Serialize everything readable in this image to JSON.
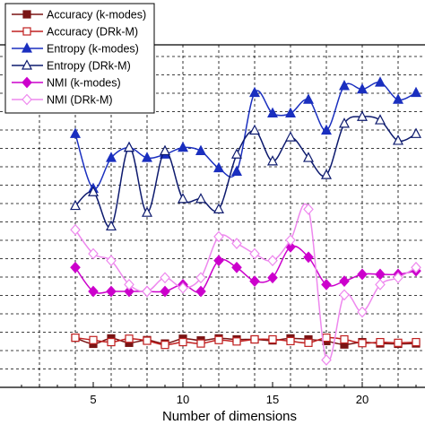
{
  "chart_data": {
    "type": "line",
    "title": "",
    "xlabel": "Number of dimensions",
    "ylabel": "",
    "xlim": [
      0,
      24
    ],
    "ylim": [
      0,
      1
    ],
    "x_ticks": [
      5,
      10,
      15,
      20
    ],
    "grid": true,
    "legend_position": "top-left",
    "x": [
      4,
      5,
      6,
      7,
      8,
      9,
      10,
      11,
      12,
      13,
      14,
      15,
      16,
      17,
      18,
      19,
      20,
      21,
      22,
      23
    ],
    "series": [
      {
        "name": "Accuracy (k-modes)",
        "color": "#7a1414",
        "marker": "square-filled",
        "values": [
          0.145,
          0.127,
          0.143,
          0.13,
          0.138,
          0.128,
          0.142,
          0.137,
          0.143,
          0.14,
          0.14,
          0.137,
          0.143,
          0.14,
          0.135,
          0.125,
          0.132,
          0.128,
          0.127,
          0.128
        ]
      },
      {
        "name": "Accuracy (DRk-M)",
        "color": "#c02020",
        "marker": "square-open",
        "values": [
          0.145,
          0.138,
          0.132,
          0.142,
          0.136,
          0.124,
          0.132,
          0.128,
          0.138,
          0.134,
          0.14,
          0.14,
          0.135,
          0.13,
          0.145,
          0.14,
          0.129,
          0.132,
          0.13,
          0.132
        ]
      },
      {
        "name": "Entropy (k-modes)",
        "color": "#1a2fbf",
        "marker": "triangle-filled",
        "values": [
          0.74,
          0.58,
          0.67,
          0.7,
          0.67,
          0.68,
          0.7,
          0.69,
          0.64,
          0.63,
          0.86,
          0.8,
          0.8,
          0.84,
          0.75,
          0.88,
          0.87,
          0.89,
          0.84,
          0.86
        ]
      },
      {
        "name": "Entropy (DRk-M)",
        "color": "#0d1a6e",
        "marker": "triangle-open",
        "values": [
          0.53,
          0.57,
          0.47,
          0.7,
          0.51,
          0.69,
          0.55,
          0.55,
          0.52,
          0.68,
          0.75,
          0.66,
          0.73,
          0.67,
          0.62,
          0.77,
          0.79,
          0.78,
          0.72,
          0.74
        ]
      },
      {
        "name": "NMI (k-modes)",
        "color": "#cc00cc",
        "marker": "diamond-filled",
        "values": [
          0.35,
          0.28,
          0.28,
          0.28,
          0.28,
          0.28,
          0.3,
          0.28,
          0.37,
          0.35,
          0.31,
          0.32,
          0.41,
          0.38,
          0.3,
          0.31,
          0.33,
          0.33,
          0.33,
          0.34
        ]
      },
      {
        "name": "NMI (DRk-M)",
        "color": "#ee88ee",
        "marker": "diamond-open",
        "values": [
          0.46,
          0.39,
          0.37,
          0.3,
          0.28,
          0.32,
          0.29,
          0.32,
          0.44,
          0.42,
          0.39,
          0.37,
          0.43,
          0.52,
          0.08,
          0.27,
          0.22,
          0.3,
          0.32,
          0.35
        ]
      }
    ]
  }
}
